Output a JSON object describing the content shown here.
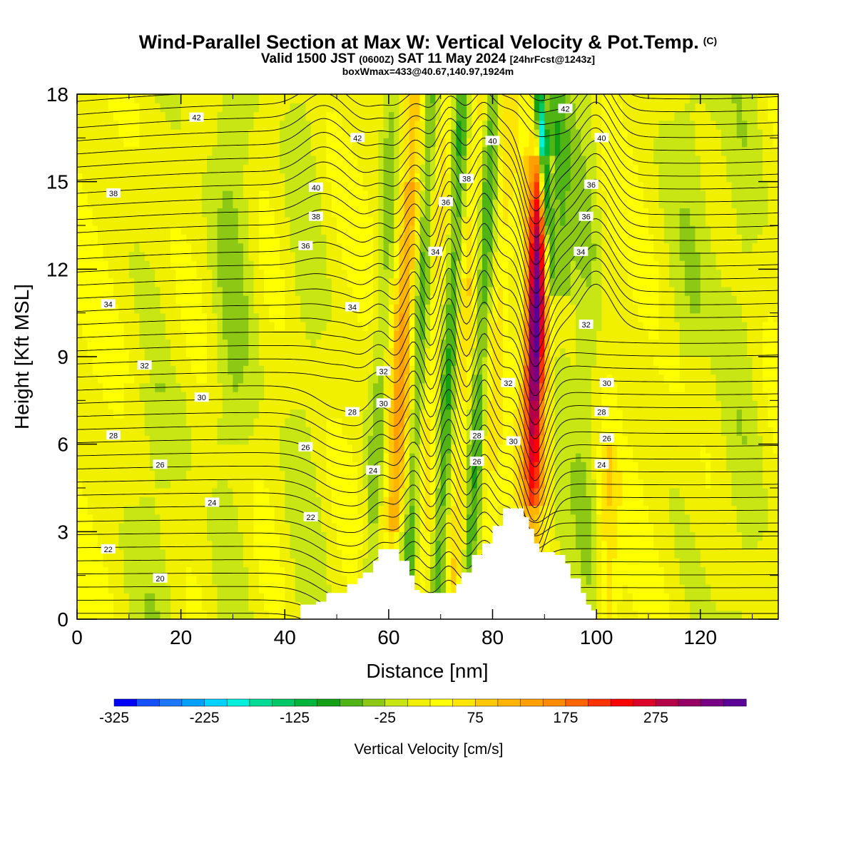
{
  "header": {
    "title": "Wind-Parallel Section at Max W: Vertical Velocity & Pot.Temp.",
    "copyright": "(C)",
    "valid_main": "Valid 1500 JST",
    "valid_utc": "(0600Z)",
    "valid_date": "SAT 11 May 2024",
    "forecast": "[24hrFcst@1243z]",
    "box_info": "boxWmax=433@40.67,140.97,1924m"
  },
  "chart_data": {
    "type": "heatmap",
    "xlabel": "Distance [nm]",
    "ylabel": "Height [Kft MSL]",
    "xlim": [
      0,
      135
    ],
    "ylim": [
      0,
      18
    ],
    "x_ticks": [
      0,
      20,
      40,
      60,
      80,
      100,
      120
    ],
    "y_ticks": [
      0,
      3,
      6,
      9,
      12,
      15,
      18
    ],
    "colorbar": {
      "label": "Vertical Velocity [cm/s]",
      "tick_labels": [
        "-325",
        "-225",
        "-125",
        "-25",
        "75",
        "175",
        "275"
      ],
      "tick_values": [
        -325,
        -225,
        -125,
        -25,
        75,
        175,
        275
      ],
      "range": [
        -325,
        375
      ],
      "colors": [
        "#0000ff",
        "#1450ff",
        "#1e78ff",
        "#00a0ff",
        "#00d2ff",
        "#00f0dc",
        "#00dc96",
        "#00c864",
        "#00b43c",
        "#14a014",
        "#50b414",
        "#8cc814",
        "#c8e614",
        "#f0f000",
        "#ffff00",
        "#ffe600",
        "#ffc800",
        "#ffb400",
        "#ffa000",
        "#ff8c00",
        "#ff6400",
        "#ff3200",
        "#ff0000",
        "#dc0028",
        "#b40046",
        "#960064",
        "#780082",
        "#5a0096"
      ]
    },
    "terrain": [
      [
        0,
        0
      ],
      [
        42,
        0
      ],
      [
        43,
        0.5
      ],
      [
        46,
        0.6
      ],
      [
        48,
        0.9
      ],
      [
        51,
        0.9
      ],
      [
        52,
        1.2
      ],
      [
        54,
        1.4
      ],
      [
        55,
        1.6
      ],
      [
        57,
        2
      ],
      [
        58,
        2.4
      ],
      [
        61,
        2.4
      ],
      [
        62,
        2
      ],
      [
        64,
        1.5
      ],
      [
        65,
        1
      ],
      [
        66,
        0.9
      ],
      [
        72,
        0.9
      ],
      [
        73,
        1.2
      ],
      [
        74,
        1.6
      ],
      [
        76,
        2.2
      ],
      [
        78,
        2.6
      ],
      [
        80,
        3.2
      ],
      [
        82,
        3.8
      ],
      [
        85,
        3.8
      ],
      [
        86,
        3.5
      ],
      [
        87,
        3.1
      ],
      [
        88,
        2.6
      ],
      [
        89,
        2.3
      ],
      [
        92,
        2.2
      ],
      [
        94,
        1.9
      ],
      [
        95,
        1.4
      ],
      [
        97,
        0.9
      ],
      [
        98,
        0.5
      ],
      [
        99,
        0.3
      ],
      [
        100,
        0
      ],
      [
        135,
        0
      ]
    ],
    "theta_labels": [
      {
        "text": "42",
        "x": 23,
        "y": 17.2
      },
      {
        "text": "42",
        "x": 54,
        "y": 16.5
      },
      {
        "text": "40",
        "x": 80,
        "y": 16.4
      },
      {
        "text": "42",
        "x": 94,
        "y": 17.5
      },
      {
        "text": "40",
        "x": 101,
        "y": 16.5
      },
      {
        "text": "38",
        "x": 7,
        "y": 14.6
      },
      {
        "text": "40",
        "x": 46,
        "y": 14.8
      },
      {
        "text": "38",
        "x": 75,
        "y": 15.1
      },
      {
        "text": "36",
        "x": 99,
        "y": 14.9
      },
      {
        "text": "38",
        "x": 46,
        "y": 13.8
      },
      {
        "text": "36",
        "x": 71,
        "y": 14.3
      },
      {
        "text": "36",
        "x": 98,
        "y": 13.8
      },
      {
        "text": "36",
        "x": 44,
        "y": 12.8
      },
      {
        "text": "34",
        "x": 69,
        "y": 12.6
      },
      {
        "text": "34",
        "x": 97,
        "y": 12.6
      },
      {
        "text": "34",
        "x": 6,
        "y": 10.8
      },
      {
        "text": "34",
        "x": 53,
        "y": 10.7
      },
      {
        "text": "32",
        "x": 98,
        "y": 10.1
      },
      {
        "text": "32",
        "x": 13,
        "y": 8.7
      },
      {
        "text": "32",
        "x": 59,
        "y": 8.5
      },
      {
        "text": "32",
        "x": 83,
        "y": 8.1
      },
      {
        "text": "30",
        "x": 102,
        "y": 8.1
      },
      {
        "text": "30",
        "x": 24,
        "y": 7.6
      },
      {
        "text": "30",
        "x": 59,
        "y": 7.4
      },
      {
        "text": "28",
        "x": 53,
        "y": 7.1
      },
      {
        "text": "28",
        "x": 101,
        "y": 7.1
      },
      {
        "text": "28",
        "x": 7,
        "y": 6.3
      },
      {
        "text": "28",
        "x": 77,
        "y": 6.3
      },
      {
        "text": "30",
        "x": 84,
        "y": 6.1
      },
      {
        "text": "26",
        "x": 102,
        "y": 6.2
      },
      {
        "text": "26",
        "x": 44,
        "y": 5.9
      },
      {
        "text": "26",
        "x": 77,
        "y": 5.4
      },
      {
        "text": "24",
        "x": 101,
        "y": 5.3
      },
      {
        "text": "26",
        "x": 16,
        "y": 5.3
      },
      {
        "text": "24",
        "x": 57,
        "y": 5.1
      },
      {
        "text": "24",
        "x": 26,
        "y": 4
      },
      {
        "text": "22",
        "x": 45,
        "y": 3.5
      },
      {
        "text": "22",
        "x": 6,
        "y": 2.4
      },
      {
        "text": "20",
        "x": 16,
        "y": 1.4
      }
    ]
  }
}
